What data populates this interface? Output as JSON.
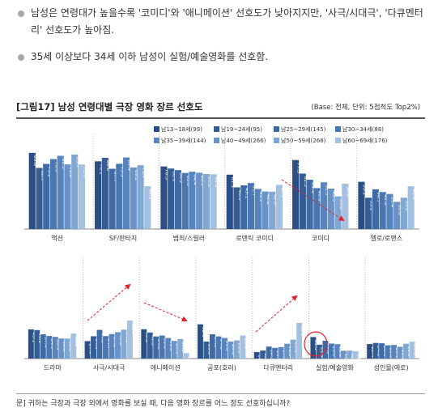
{
  "bullets": [
    "남성은 연령대가 높을수록 '코미디'와 '애니메이션' 선호도가 낮아지지만, '사극/시대극', '다큐멘터리' 선호도가 높아짐.",
    "35세 이상보다 34세 이하 남성이 실험/예술영화를 선호함."
  ],
  "figure": {
    "title": "[그림17] 남성 연령대별 극장 영화 장르 선호도",
    "note": "(Base: 전체, 단위: 5점척도 Top2%)"
  },
  "question": "문] 귀하는 극장과 극장 외에서 영화를 보실 때, 다음 영화 장르를 어느 정도 선호하십니까?",
  "colors": {
    "series": [
      "#2b4f85",
      "#345d96",
      "#3e6aa6",
      "#4a77b2",
      "#5784bd",
      "#6993c7",
      "#80a6d2",
      "#a4c0e1"
    ],
    "arrow": "#e8202a",
    "grid": "#bbbbbb",
    "axis": "#888888"
  },
  "chart_data": {
    "type": "bar",
    "legend_position": "top-right",
    "series": [
      {
        "name": "남13~18세(99)"
      },
      {
        "name": "남19~24세(95)"
      },
      {
        "name": "남25~29세(145)"
      },
      {
        "name": "남30~34세(88)"
      },
      {
        "name": "남35~39세(144)"
      },
      {
        "name": "남40~49세(266)"
      },
      {
        "name": "남50~59세(266)"
      },
      {
        "name": "남60~69세(176)"
      }
    ],
    "panels": [
      {
        "categories": [
          "액션",
          "SF/판타지",
          "범죄/스릴러",
          "로맨틱 코미디",
          "코미디",
          "멜로/로맨스"
        ],
        "values": [
          [
            85.6,
            68.7,
            73.2,
            78.6,
            82.3,
            72.6,
            83.7,
            72.6
          ],
          [
            76.1,
            80.0,
            67.7,
            73.3,
            80.4,
            69.2,
            71.7,
            48.1
          ],
          [
            70.3,
            68.0,
            66.2,
            63.0,
            64.4,
            63.3,
            61.8,
            61.5
          ],
          [
            61.1,
            46.9,
            49.1,
            51.7,
            45.1,
            42.2,
            42.0,
            49.7
          ],
          [
            77.5,
            62.3,
            55.4,
            46.0,
            52.5,
            45.5,
            36.8,
            50.9
          ],
          [
            53.1,
            35.2,
            44.7,
            41.6,
            39.4,
            30.6,
            35.2,
            48.0
          ]
        ]
      },
      {
        "categories": [
          "드라마",
          "사극/시대극",
          "애니메이션",
          "공포(호러)",
          "다큐멘터리",
          "실험/예술영화",
          "성인물(에로)"
        ],
        "values": [
          [
            45.1,
            44.0,
            37.4,
            34.9,
            33.5,
            31.0,
            30.8,
            38.8
          ],
          [
            27.0,
            34.5,
            44.3,
            34.7,
            37.8,
            40.8,
            44.6,
            58.6
          ],
          [
            45.3,
            40.3,
            34.2,
            35.6,
            31.8,
            27.3,
            30.2,
            8.4
          ],
          [
            52.9,
            26.3,
            37.5,
            34.2,
            31.8,
            26.3,
            28.1,
            35.6
          ],
          [
            10.0,
            12.4,
            18.5,
            16.5,
            17.8,
            22.9,
            29.2,
            55.1
          ],
          [
            33.3,
            21.4,
            27.5,
            23.2,
            22.2,
            12.0,
            12.2,
            11.2
          ],
          [
            22.4,
            24.1,
            23.6,
            20.5,
            21.1,
            18.2,
            22.9,
            26.1
          ]
        ]
      }
    ]
  }
}
